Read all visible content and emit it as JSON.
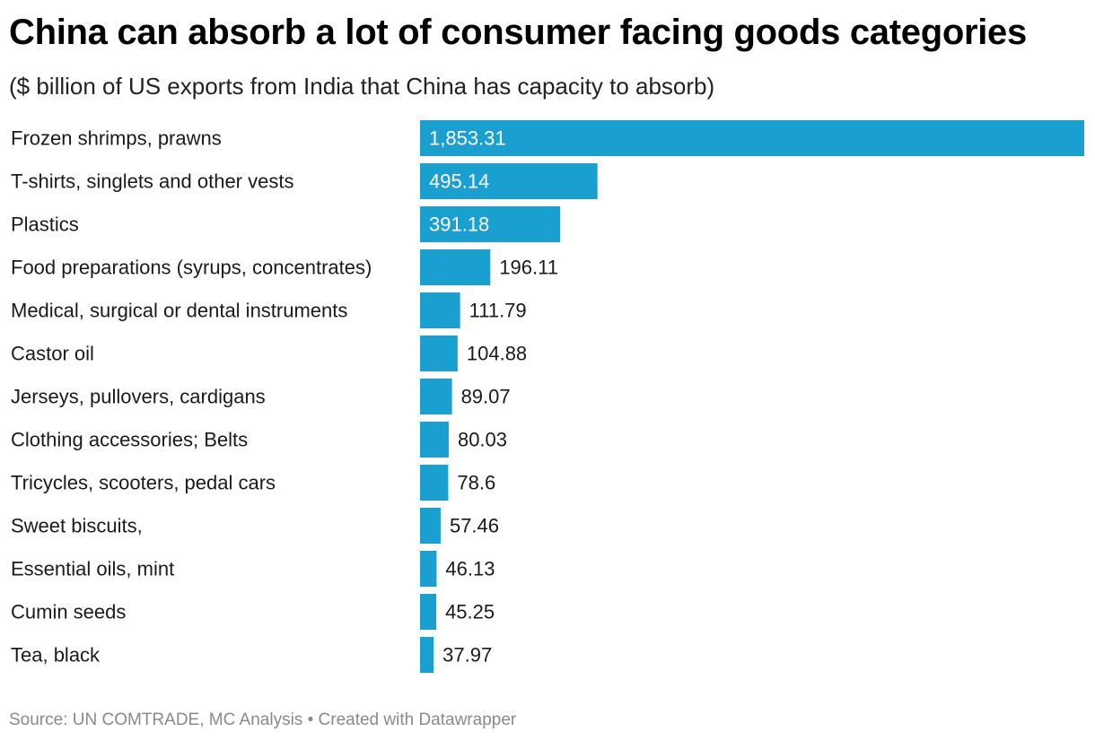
{
  "header": {
    "title": "China can absorb a lot of consumer facing goods categories",
    "subtitle": "($ billion of US exports from India that China has capacity to absorb)"
  },
  "footer": {
    "source_label": "Source:",
    "source": "UN COMTRADE, MC Analysis",
    "separator": "•",
    "credit": "Created with Datawrapper"
  },
  "colors": {
    "bar": "#1aa0d0",
    "label_inside": "#ffffff",
    "label_outside": "#1a1a1a"
  },
  "chart_data": {
    "type": "bar",
    "orientation": "horizontal",
    "title": "China can absorb a lot of consumer facing goods categories",
    "subtitle": "($ billion of US exports from India that China has capacity to absorb)",
    "xlabel": "",
    "ylabel": "",
    "xlim": [
      0,
      1853.31
    ],
    "grid": false,
    "categories": [
      "Frozen shrimps, prawns",
      "T-shirts, singlets and other vests",
      "Plastics",
      "Food preparations (syrups, concentrates)",
      "Medical, surgical or dental instruments",
      "Castor oil",
      "Jerseys, pullovers, cardigans",
      "Clothing accessories; Belts",
      "Tricycles, scooters, pedal cars",
      "Sweet biscuits,",
      "Essential oils, mint",
      "Cumin seeds",
      "Tea, black"
    ],
    "values": [
      1853.31,
      495.14,
      391.18,
      196.11,
      111.79,
      104.88,
      89.07,
      80.03,
      78.6,
      57.46,
      46.13,
      45.25,
      37.97
    ],
    "value_labels": [
      "1,853.31",
      "495.14",
      "391.18",
      "196.11",
      "111.79",
      "104.88",
      "89.07",
      "80.03",
      "78.6",
      "57.46",
      "46.13",
      "45.25",
      "37.97"
    ]
  }
}
